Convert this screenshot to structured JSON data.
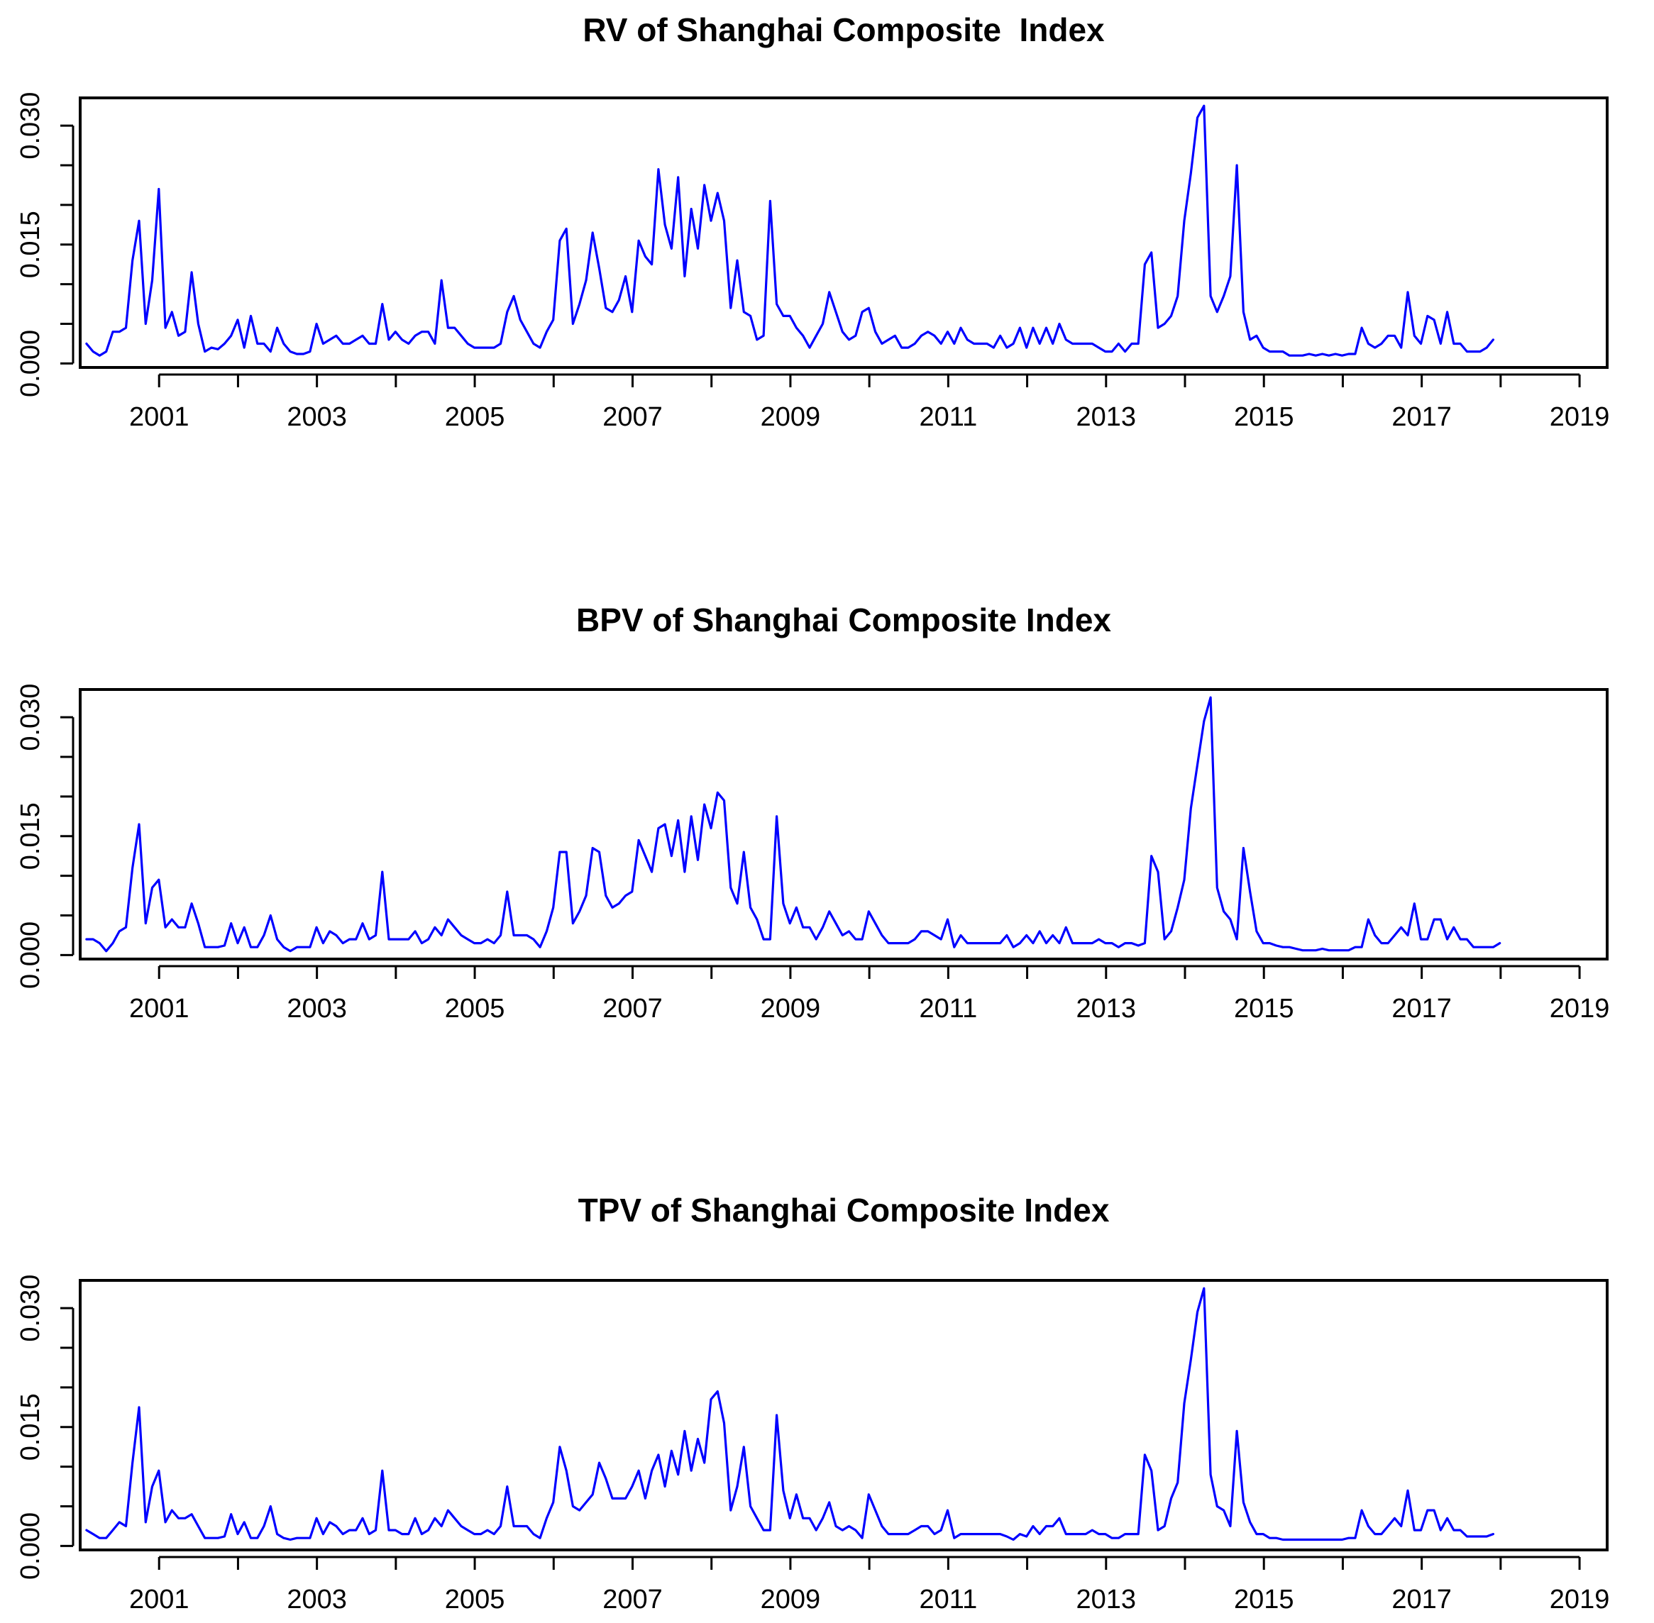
{
  "chart_data": [
    {
      "type": "line",
      "title": "RV of Shanghai Composite  Index",
      "xlabel": "",
      "ylabel": "",
      "xlim": [
        2000,
        2019.35
      ],
      "ylim": [
        -0.0005,
        0.0335
      ],
      "x_ticks": [
        2001,
        2002,
        2003,
        2004,
        2005,
        2006,
        2007,
        2008,
        2009,
        2010,
        2011,
        2012,
        2013,
        2014,
        2015,
        2016,
        2017,
        2018,
        2019
      ],
      "x_tick_labels": [
        "2001",
        "2003",
        "2005",
        "2007",
        "2009",
        "2011",
        "2013",
        "2015",
        "2017",
        "2019"
      ],
      "y_ticks": [
        0.0,
        0.005,
        0.01,
        0.015,
        0.02,
        0.025,
        0.03
      ],
      "y_tick_labels": [
        "0.000",
        "0.015",
        "0.030"
      ],
      "line_color": "#0000ff",
      "series": [
        {
          "name": "RV",
          "start": 2000.08,
          "step": 0.0833,
          "values": [
            0.0025,
            0.0015,
            0.001,
            0.0015,
            0.004,
            0.004,
            0.0045,
            0.013,
            0.018,
            0.005,
            0.0105,
            0.022,
            0.0045,
            0.0065,
            0.0035,
            0.004,
            0.0115,
            0.005,
            0.0015,
            0.002,
            0.0018,
            0.0025,
            0.0035,
            0.0055,
            0.002,
            0.006,
            0.0025,
            0.0025,
            0.0015,
            0.0045,
            0.0025,
            0.0015,
            0.0012,
            0.0012,
            0.0015,
            0.005,
            0.0025,
            0.003,
            0.0035,
            0.0025,
            0.0025,
            0.003,
            0.0035,
            0.0025,
            0.0025,
            0.0075,
            0.003,
            0.004,
            0.003,
            0.0025,
            0.0035,
            0.004,
            0.004,
            0.0025,
            0.0105,
            0.0045,
            0.0045,
            0.0035,
            0.0025,
            0.002,
            0.002,
            0.002,
            0.002,
            0.0025,
            0.0065,
            0.0085,
            0.0055,
            0.004,
            0.0025,
            0.002,
            0.004,
            0.0055,
            0.0155,
            0.017,
            0.005,
            0.0075,
            0.0105,
            0.0165,
            0.012,
            0.007,
            0.0065,
            0.008,
            0.011,
            0.0065,
            0.0155,
            0.0135,
            0.0125,
            0.0245,
            0.0175,
            0.0145,
            0.0235,
            0.011,
            0.0195,
            0.0145,
            0.0225,
            0.018,
            0.0215,
            0.018,
            0.007,
            0.013,
            0.0065,
            0.006,
            0.003,
            0.0035,
            0.0205,
            0.0075,
            0.006,
            0.006,
            0.0045,
            0.0035,
            0.002,
            0.0035,
            0.005,
            0.009,
            0.0065,
            0.004,
            0.003,
            0.0035,
            0.0065,
            0.007,
            0.004,
            0.0025,
            0.003,
            0.0035,
            0.002,
            0.002,
            0.0025,
            0.0035,
            0.004,
            0.0035,
            0.0025,
            0.004,
            0.0025,
            0.0045,
            0.003,
            0.0025,
            0.0025,
            0.0025,
            0.002,
            0.0035,
            0.002,
            0.0025,
            0.0045,
            0.002,
            0.0045,
            0.0025,
            0.0045,
            0.0025,
            0.005,
            0.003,
            0.0025,
            0.0025,
            0.0025,
            0.0025,
            0.002,
            0.0015,
            0.0015,
            0.0025,
            0.0015,
            0.0025,
            0.0025,
            0.0125,
            0.014,
            0.0045,
            0.005,
            0.006,
            0.0085,
            0.018,
            0.024,
            0.031,
            0.0325,
            0.0085,
            0.0065,
            0.0085,
            0.011,
            0.025,
            0.0065,
            0.003,
            0.0035,
            0.002,
            0.0015,
            0.0015,
            0.0015,
            0.001,
            0.001,
            0.001,
            0.0012,
            0.001,
            0.0012,
            0.001,
            0.0012,
            0.001,
            0.0012,
            0.0012,
            0.0045,
            0.0025,
            0.002,
            0.0025,
            0.0035,
            0.0035,
            0.002,
            0.009,
            0.0035,
            0.0025,
            0.006,
            0.0055,
            0.0025,
            0.0065,
            0.0025,
            0.0025,
            0.0015,
            0.0015,
            0.0015,
            0.002,
            0.003
          ]
        }
      ]
    },
    {
      "type": "line",
      "title": "BPV of Shanghai Composite Index",
      "xlabel": "",
      "ylabel": "",
      "xlim": [
        2000,
        2019.35
      ],
      "ylim": [
        -0.0005,
        0.0335
      ],
      "x_ticks": [
        2001,
        2002,
        2003,
        2004,
        2005,
        2006,
        2007,
        2008,
        2009,
        2010,
        2011,
        2012,
        2013,
        2014,
        2015,
        2016,
        2017,
        2018,
        2019
      ],
      "x_tick_labels": [
        "2001",
        "2003",
        "2005",
        "2007",
        "2009",
        "2011",
        "2013",
        "2015",
        "2017",
        "2019"
      ],
      "y_ticks": [
        0.0,
        0.005,
        0.01,
        0.015,
        0.02,
        0.025,
        0.03
      ],
      "y_tick_labels": [
        "0.000",
        "0.015",
        "0.030"
      ],
      "line_color": "#0000ff",
      "series": [
        {
          "name": "BPV",
          "start": 2000.08,
          "step": 0.0833,
          "values": [
            0.002,
            0.002,
            0.0015,
            0.0005,
            0.0015,
            0.003,
            0.0035,
            0.011,
            0.0165,
            0.004,
            0.0085,
            0.0095,
            0.0035,
            0.0045,
            0.0035,
            0.0035,
            0.0065,
            0.004,
            0.001,
            0.001,
            0.001,
            0.0012,
            0.004,
            0.0015,
            0.0035,
            0.001,
            0.001,
            0.0025,
            0.005,
            0.002,
            0.001,
            0.0005,
            0.001,
            0.001,
            0.001,
            0.0035,
            0.0015,
            0.003,
            0.0025,
            0.0015,
            0.002,
            0.002,
            0.004,
            0.002,
            0.0025,
            0.0105,
            0.002,
            0.002,
            0.002,
            0.002,
            0.003,
            0.0015,
            0.002,
            0.0035,
            0.0025,
            0.0045,
            0.0035,
            0.0025,
            0.002,
            0.0015,
            0.0015,
            0.002,
            0.0015,
            0.0025,
            0.008,
            0.0025,
            0.0025,
            0.0025,
            0.002,
            0.001,
            0.003,
            0.006,
            0.013,
            0.013,
            0.004,
            0.0055,
            0.0075,
            0.0135,
            0.013,
            0.0075,
            0.006,
            0.0065,
            0.0075,
            0.008,
            0.0145,
            0.0125,
            0.0105,
            0.016,
            0.0165,
            0.0125,
            0.017,
            0.0105,
            0.0175,
            0.012,
            0.019,
            0.016,
            0.0205,
            0.0195,
            0.0085,
            0.0065,
            0.013,
            0.006,
            0.0045,
            0.002,
            0.002,
            0.0175,
            0.0065,
            0.004,
            0.006,
            0.0035,
            0.0035,
            0.002,
            0.0035,
            0.0055,
            0.004,
            0.0025,
            0.003,
            0.002,
            0.002,
            0.0055,
            0.004,
            0.0025,
            0.0015,
            0.0015,
            0.0015,
            0.0015,
            0.002,
            0.003,
            0.003,
            0.0025,
            0.002,
            0.0045,
            0.001,
            0.0025,
            0.0015,
            0.0015,
            0.0015,
            0.0015,
            0.0015,
            0.0015,
            0.0025,
            0.001,
            0.0015,
            0.0025,
            0.0015,
            0.003,
            0.0015,
            0.0025,
            0.0015,
            0.0035,
            0.0015,
            0.0015,
            0.0015,
            0.0015,
            0.002,
            0.0015,
            0.0015,
            0.001,
            0.0015,
            0.0015,
            0.0012,
            0.0015,
            0.0125,
            0.0105,
            0.002,
            0.003,
            0.006,
            0.0095,
            0.0185,
            0.024,
            0.0295,
            0.0325,
            0.0085,
            0.0055,
            0.0045,
            0.002,
            0.0135,
            0.008,
            0.003,
            0.0015,
            0.0015,
            0.0012,
            0.001,
            0.001,
            0.0008,
            0.0006,
            0.0006,
            0.0006,
            0.0008,
            0.0006,
            0.0006,
            0.0006,
            0.0006,
            0.001,
            0.001,
            0.0045,
            0.0025,
            0.0015,
            0.0015,
            0.0025,
            0.0035,
            0.0025,
            0.0065,
            0.002,
            0.002,
            0.0045,
            0.0045,
            0.002,
            0.0035,
            0.002,
            0.002,
            0.001,
            0.001,
            0.001,
            0.001,
            0.0015
          ]
        }
      ]
    },
    {
      "type": "line",
      "title": "TPV of Shanghai Composite Index",
      "xlabel": "",
      "ylabel": "",
      "xlim": [
        2000,
        2019.35
      ],
      "ylim": [
        -0.0005,
        0.0335
      ],
      "x_ticks": [
        2001,
        2002,
        2003,
        2004,
        2005,
        2006,
        2007,
        2008,
        2009,
        2010,
        2011,
        2012,
        2013,
        2014,
        2015,
        2016,
        2017,
        2018,
        2019
      ],
      "x_tick_labels": [
        "2001",
        "2003",
        "2005",
        "2007",
        "2009",
        "2011",
        "2013",
        "2015",
        "2017",
        "2019"
      ],
      "y_ticks": [
        0.0,
        0.005,
        0.01,
        0.015,
        0.02,
        0.025,
        0.03
      ],
      "y_tick_labels": [
        "0.000",
        "0.015",
        "0.030"
      ],
      "line_color": "#0000ff",
      "series": [
        {
          "name": "TPV",
          "start": 2000.08,
          "step": 0.0833,
          "values": [
            0.002,
            0.0015,
            0.001,
            0.001,
            0.002,
            0.003,
            0.0025,
            0.0105,
            0.0175,
            0.003,
            0.0075,
            0.0095,
            0.003,
            0.0045,
            0.0035,
            0.0035,
            0.004,
            0.0025,
            0.001,
            0.001,
            0.001,
            0.0012,
            0.004,
            0.0015,
            0.003,
            0.001,
            0.001,
            0.0025,
            0.005,
            0.0015,
            0.001,
            0.0008,
            0.001,
            0.001,
            0.001,
            0.0035,
            0.0015,
            0.003,
            0.0025,
            0.0015,
            0.002,
            0.002,
            0.0035,
            0.0015,
            0.002,
            0.0095,
            0.002,
            0.002,
            0.0015,
            0.0015,
            0.0035,
            0.0015,
            0.002,
            0.0035,
            0.0025,
            0.0045,
            0.0035,
            0.0025,
            0.002,
            0.0015,
            0.0015,
            0.002,
            0.0015,
            0.0025,
            0.0075,
            0.0025,
            0.0025,
            0.0025,
            0.0015,
            0.001,
            0.0035,
            0.0055,
            0.0125,
            0.0095,
            0.005,
            0.0045,
            0.0055,
            0.0065,
            0.0105,
            0.0085,
            0.006,
            0.006,
            0.006,
            0.0075,
            0.0095,
            0.006,
            0.0095,
            0.0115,
            0.0075,
            0.012,
            0.009,
            0.0145,
            0.0095,
            0.0135,
            0.0105,
            0.0185,
            0.0195,
            0.0155,
            0.0045,
            0.0075,
            0.0125,
            0.005,
            0.0035,
            0.002,
            0.002,
            0.0165,
            0.007,
            0.0035,
            0.0065,
            0.0035,
            0.0035,
            0.002,
            0.0035,
            0.0055,
            0.0025,
            0.002,
            0.0025,
            0.002,
            0.001,
            0.0065,
            0.0045,
            0.0025,
            0.0015,
            0.0015,
            0.0015,
            0.0015,
            0.002,
            0.0025,
            0.0025,
            0.0015,
            0.002,
            0.0045,
            0.001,
            0.0015,
            0.0015,
            0.0015,
            0.0015,
            0.0015,
            0.0015,
            0.0015,
            0.0012,
            0.0008,
            0.0015,
            0.0012,
            0.0025,
            0.0015,
            0.0025,
            0.0025,
            0.0035,
            0.0015,
            0.0015,
            0.0015,
            0.0015,
            0.002,
            0.0015,
            0.0015,
            0.001,
            0.001,
            0.0015,
            0.0015,
            0.0015,
            0.0115,
            0.0095,
            0.002,
            0.0025,
            0.006,
            0.008,
            0.018,
            0.0235,
            0.0295,
            0.0325,
            0.009,
            0.005,
            0.0045,
            0.0025,
            0.0145,
            0.0055,
            0.003,
            0.0015,
            0.0015,
            0.001,
            0.001,
            0.0008,
            0.0008,
            0.0008,
            0.0008,
            0.0008,
            0.0008,
            0.0008,
            0.0008,
            0.0008,
            0.0008,
            0.001,
            0.001,
            0.0045,
            0.0025,
            0.0015,
            0.0015,
            0.0025,
            0.0035,
            0.0025,
            0.007,
            0.002,
            0.002,
            0.0045,
            0.0045,
            0.002,
            0.0035,
            0.002,
            0.002,
            0.0012,
            0.0012,
            0.0012,
            0.0012,
            0.0015
          ]
        }
      ]
    }
  ]
}
